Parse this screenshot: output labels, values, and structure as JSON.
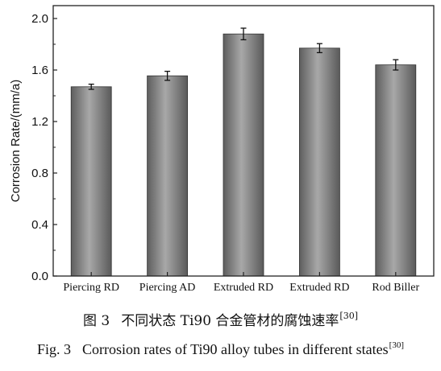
{
  "chart_data": {
    "type": "bar",
    "categories": [
      "Piercing RD",
      "Piercing AD",
      "Extruded RD",
      "Extruded RD",
      "Rod Biller"
    ],
    "values": [
      1.47,
      1.555,
      1.88,
      1.77,
      1.64
    ],
    "errors": [
      0.02,
      0.035,
      0.045,
      0.035,
      0.04
    ],
    "ylabel": "Corrosion Rate/(mm/a)",
    "xlabel": "",
    "ylim": [
      0.0,
      2.1
    ],
    "yticks": [
      "0.0",
      "0.4",
      "0.8",
      "1.2",
      "1.6",
      "2.0"
    ],
    "grid": false,
    "bar_color": "#8c8c8c"
  },
  "caption": {
    "cn_fig": "图 3",
    "cn_text": "不同状态 Ti90 合金管材的腐蚀速率",
    "cn_ref": "[30]",
    "en_fig": "Fig. 3",
    "en_text": "Corrosion rates of Ti90 alloy tubes in different states",
    "en_ref": "[30]"
  }
}
